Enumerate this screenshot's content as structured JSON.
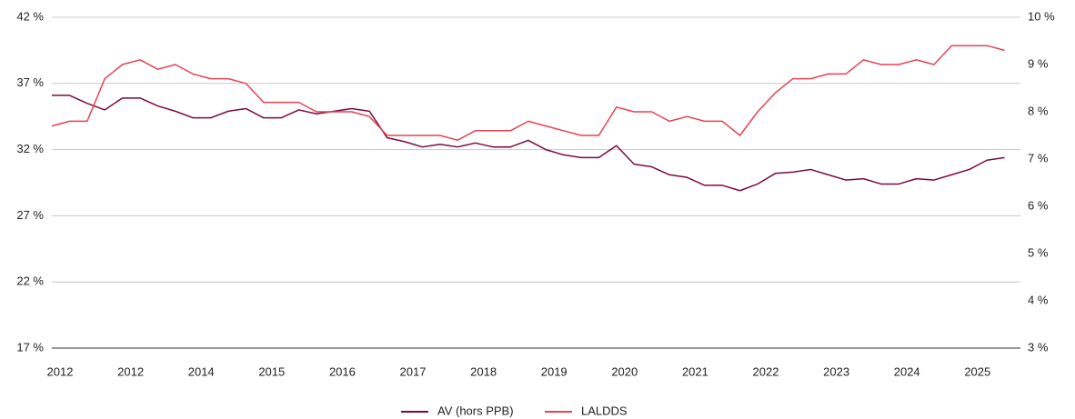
{
  "chart_data": {
    "type": "line",
    "categories": [
      "2012",
      null,
      null,
      null,
      "2012",
      null,
      null,
      null,
      "2014",
      null,
      null,
      null,
      "2015",
      null,
      null,
      null,
      "2016",
      null,
      null,
      null,
      "2017",
      null,
      null,
      null,
      "2018",
      null,
      null,
      null,
      "2019",
      null,
      null,
      null,
      "2020",
      null,
      null,
      null,
      "2021",
      null,
      null,
      null,
      "2022",
      null,
      null,
      null,
      "2023",
      null,
      null,
      null,
      "2024",
      null,
      null,
      null,
      "2025",
      null,
      null
    ],
    "series": [
      {
        "name": "AV (hors PPB)",
        "color": "#7b0a3f",
        "axis": "y",
        "values": [
          36.1,
          36.1,
          35.5,
          35.0,
          35.9,
          35.9,
          35.3,
          34.9,
          34.4,
          34.4,
          34.9,
          35.1,
          34.4,
          34.4,
          35.0,
          34.7,
          34.9,
          35.1,
          34.9,
          32.9,
          32.6,
          32.2,
          32.4,
          32.2,
          32.5,
          32.2,
          32.2,
          32.7,
          32.0,
          31.6,
          31.4,
          31.4,
          32.3,
          30.9,
          30.7,
          30.1,
          29.9,
          29.3,
          29.3,
          28.9,
          29.4,
          30.2,
          30.3,
          30.5,
          30.1,
          29.7,
          29.8,
          29.4,
          29.4,
          29.8,
          29.7,
          30.1,
          30.5,
          31.2,
          31.4
        ]
      },
      {
        "name": "LALDDS",
        "color": "#e8414f",
        "axis": "y2",
        "values": [
          7.7,
          7.8,
          7.8,
          8.7,
          9.0,
          9.1,
          8.9,
          9.0,
          8.8,
          8.7,
          8.7,
          8.6,
          8.2,
          8.2,
          8.2,
          8.0,
          8.0,
          8.0,
          7.9,
          7.5,
          7.5,
          7.5,
          7.5,
          7.4,
          7.6,
          7.6,
          7.6,
          7.8,
          7.7,
          7.6,
          7.5,
          7.5,
          8.1,
          8.0,
          8.0,
          7.8,
          7.9,
          7.8,
          7.8,
          7.5,
          8.0,
          8.4,
          8.7,
          8.7,
          8.8,
          8.8,
          9.1,
          9.0,
          9.0,
          9.1,
          9.0,
          9.4,
          9.4,
          9.4,
          9.3
        ]
      }
    ],
    "ylim": [
      17,
      42
    ],
    "yticks": [
      {
        "value": 17,
        "label": "17 %"
      },
      {
        "value": 22,
        "label": "22 %"
      },
      {
        "value": 27,
        "label": "27 %"
      },
      {
        "value": 32,
        "label": "32 %"
      },
      {
        "value": 37,
        "label": "37 %"
      },
      {
        "value": 42,
        "label": "42 %"
      }
    ],
    "y2lim": [
      3,
      10
    ],
    "y2ticks": [
      {
        "value": 3,
        "label": "3 %"
      },
      {
        "value": 4,
        "label": "4 %"
      },
      {
        "value": 5,
        "label": "5 %"
      },
      {
        "value": 6,
        "label": "6 %"
      },
      {
        "value": 7,
        "label": "7 %"
      },
      {
        "value": 8,
        "label": "8 %"
      },
      {
        "value": 9,
        "label": "9 %"
      },
      {
        "value": 10,
        "label": "10 %"
      }
    ],
    "grid": true,
    "legend": "bottom"
  }
}
